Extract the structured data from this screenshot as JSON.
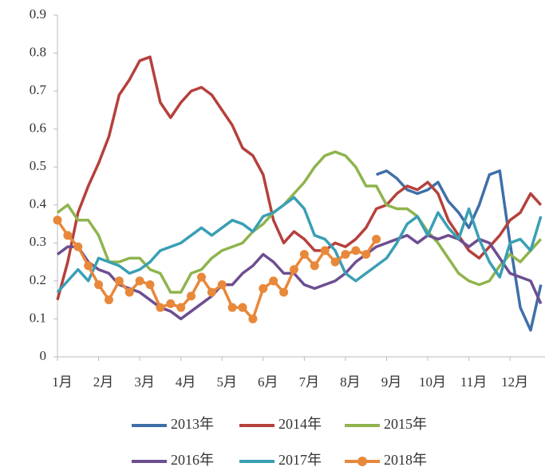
{
  "chart_data": {
    "type": "line",
    "x": [
      1,
      1.25,
      1.5,
      1.75,
      2,
      2.25,
      2.5,
      2.75,
      3,
      3.25,
      3.5,
      3.75,
      4,
      4.25,
      4.5,
      4.75,
      5,
      5.25,
      5.5,
      5.75,
      6,
      6.25,
      6.5,
      6.75,
      7,
      7.25,
      7.5,
      7.75,
      8,
      8.25,
      8.5,
      8.75,
      9,
      9.25,
      9.5,
      9.75,
      10,
      10.25,
      10.5,
      10.75,
      11,
      11.25,
      11.5,
      11.75,
      12,
      12.25,
      12.5,
      12.75
    ],
    "xlim": [
      1,
      12.85
    ],
    "xticks": [
      {
        "value": 1,
        "label": "1月"
      },
      {
        "value": 2,
        "label": "2月"
      },
      {
        "value": 3,
        "label": "3月"
      },
      {
        "value": 4,
        "label": "4月"
      },
      {
        "value": 5,
        "label": "5月"
      },
      {
        "value": 6,
        "label": "6月"
      },
      {
        "value": 7,
        "label": "7月"
      },
      {
        "value": 8,
        "label": "8月"
      },
      {
        "value": 9,
        "label": "9月"
      },
      {
        "value": 10,
        "label": "10月"
      },
      {
        "value": 11,
        "label": "11月"
      },
      {
        "value": 12,
        "label": "12月"
      }
    ],
    "ylim": [
      0,
      0.9
    ],
    "yticks": [
      0,
      0.1,
      0.2,
      0.3,
      0.4,
      0.5,
      0.6,
      0.7,
      0.8,
      0.9
    ],
    "series": [
      {
        "name": "2013年",
        "color": "#3f6fa8",
        "values": [
          null,
          null,
          null,
          null,
          null,
          null,
          null,
          null,
          null,
          null,
          null,
          null,
          null,
          null,
          null,
          null,
          null,
          null,
          null,
          null,
          null,
          null,
          null,
          null,
          null,
          null,
          null,
          null,
          null,
          null,
          null,
          0.48,
          0.49,
          0.47,
          0.44,
          0.43,
          0.44,
          0.46,
          0.41,
          0.38,
          0.34,
          0.4,
          0.48,
          0.49,
          0.3,
          0.13,
          0.07,
          0.19
        ]
      },
      {
        "name": "2014年",
        "color": "#b5403c",
        "values": [
          0.15,
          0.25,
          0.38,
          0.45,
          0.51,
          0.58,
          0.69,
          0.73,
          0.78,
          0.79,
          0.67,
          0.63,
          0.67,
          0.7,
          0.71,
          0.69,
          0.65,
          0.61,
          0.55,
          0.53,
          0.48,
          0.36,
          0.3,
          0.33,
          0.31,
          0.28,
          0.28,
          0.3,
          0.29,
          0.31,
          0.34,
          0.39,
          0.4,
          0.43,
          0.45,
          0.44,
          0.46,
          0.43,
          0.36,
          0.32,
          0.28,
          0.26,
          0.29,
          0.32,
          0.36,
          0.38,
          0.43,
          0.4
        ]
      },
      {
        "name": "2015年",
        "color": "#8fb44d",
        "values": [
          0.38,
          0.4,
          0.36,
          0.36,
          0.32,
          0.25,
          0.25,
          0.26,
          0.26,
          0.23,
          0.22,
          0.17,
          0.17,
          0.22,
          0.23,
          0.26,
          0.28,
          0.29,
          0.3,
          0.33,
          0.35,
          0.38,
          0.4,
          0.43,
          0.46,
          0.5,
          0.53,
          0.54,
          0.53,
          0.5,
          0.45,
          0.45,
          0.4,
          0.39,
          0.39,
          0.37,
          0.33,
          0.3,
          0.26,
          0.22,
          0.2,
          0.19,
          0.2,
          0.24,
          0.27,
          0.25,
          0.28,
          0.31
        ]
      },
      {
        "name": "2016年",
        "color": "#6d4e90",
        "values": [
          0.27,
          0.29,
          0.29,
          0.25,
          0.23,
          0.22,
          0.19,
          0.18,
          0.17,
          0.15,
          0.13,
          0.12,
          0.1,
          0.12,
          0.14,
          0.16,
          0.19,
          0.19,
          0.22,
          0.24,
          0.27,
          0.25,
          0.22,
          0.22,
          0.19,
          0.18,
          0.19,
          0.2,
          0.22,
          0.25,
          0.27,
          0.29,
          0.3,
          0.31,
          0.32,
          0.3,
          0.32,
          0.31,
          0.32,
          0.31,
          0.29,
          0.31,
          0.3,
          0.26,
          0.22,
          0.21,
          0.2,
          0.14
        ]
      },
      {
        "name": "2017年",
        "color": "#3a9fb4",
        "values": [
          0.17,
          0.2,
          0.23,
          0.2,
          0.26,
          0.25,
          0.24,
          0.22,
          0.23,
          0.25,
          0.28,
          0.29,
          0.3,
          0.32,
          0.34,
          0.32,
          0.34,
          0.36,
          0.35,
          0.33,
          0.37,
          0.38,
          0.4,
          0.42,
          0.39,
          0.32,
          0.31,
          0.28,
          0.22,
          0.2,
          0.22,
          0.24,
          0.26,
          0.3,
          0.35,
          0.37,
          0.32,
          0.38,
          0.34,
          0.31,
          0.39,
          0.31,
          0.25,
          0.21,
          0.3,
          0.31,
          0.28,
          0.37
        ]
      },
      {
        "name": "2018年",
        "color": "#e8883a",
        "marker": "circle",
        "values": [
          0.36,
          0.32,
          0.29,
          0.24,
          0.19,
          0.15,
          0.2,
          0.17,
          0.2,
          0.19,
          0.13,
          0.14,
          0.13,
          0.16,
          0.21,
          0.17,
          0.19,
          0.13,
          0.13,
          0.1,
          0.18,
          0.2,
          0.17,
          0.23,
          0.27,
          0.24,
          0.28,
          0.25,
          0.27,
          0.28,
          0.27,
          0.31,
          null,
          null,
          null,
          null,
          null,
          null,
          null,
          null,
          null,
          null,
          null,
          null,
          null,
          null,
          null,
          null
        ]
      }
    ]
  }
}
